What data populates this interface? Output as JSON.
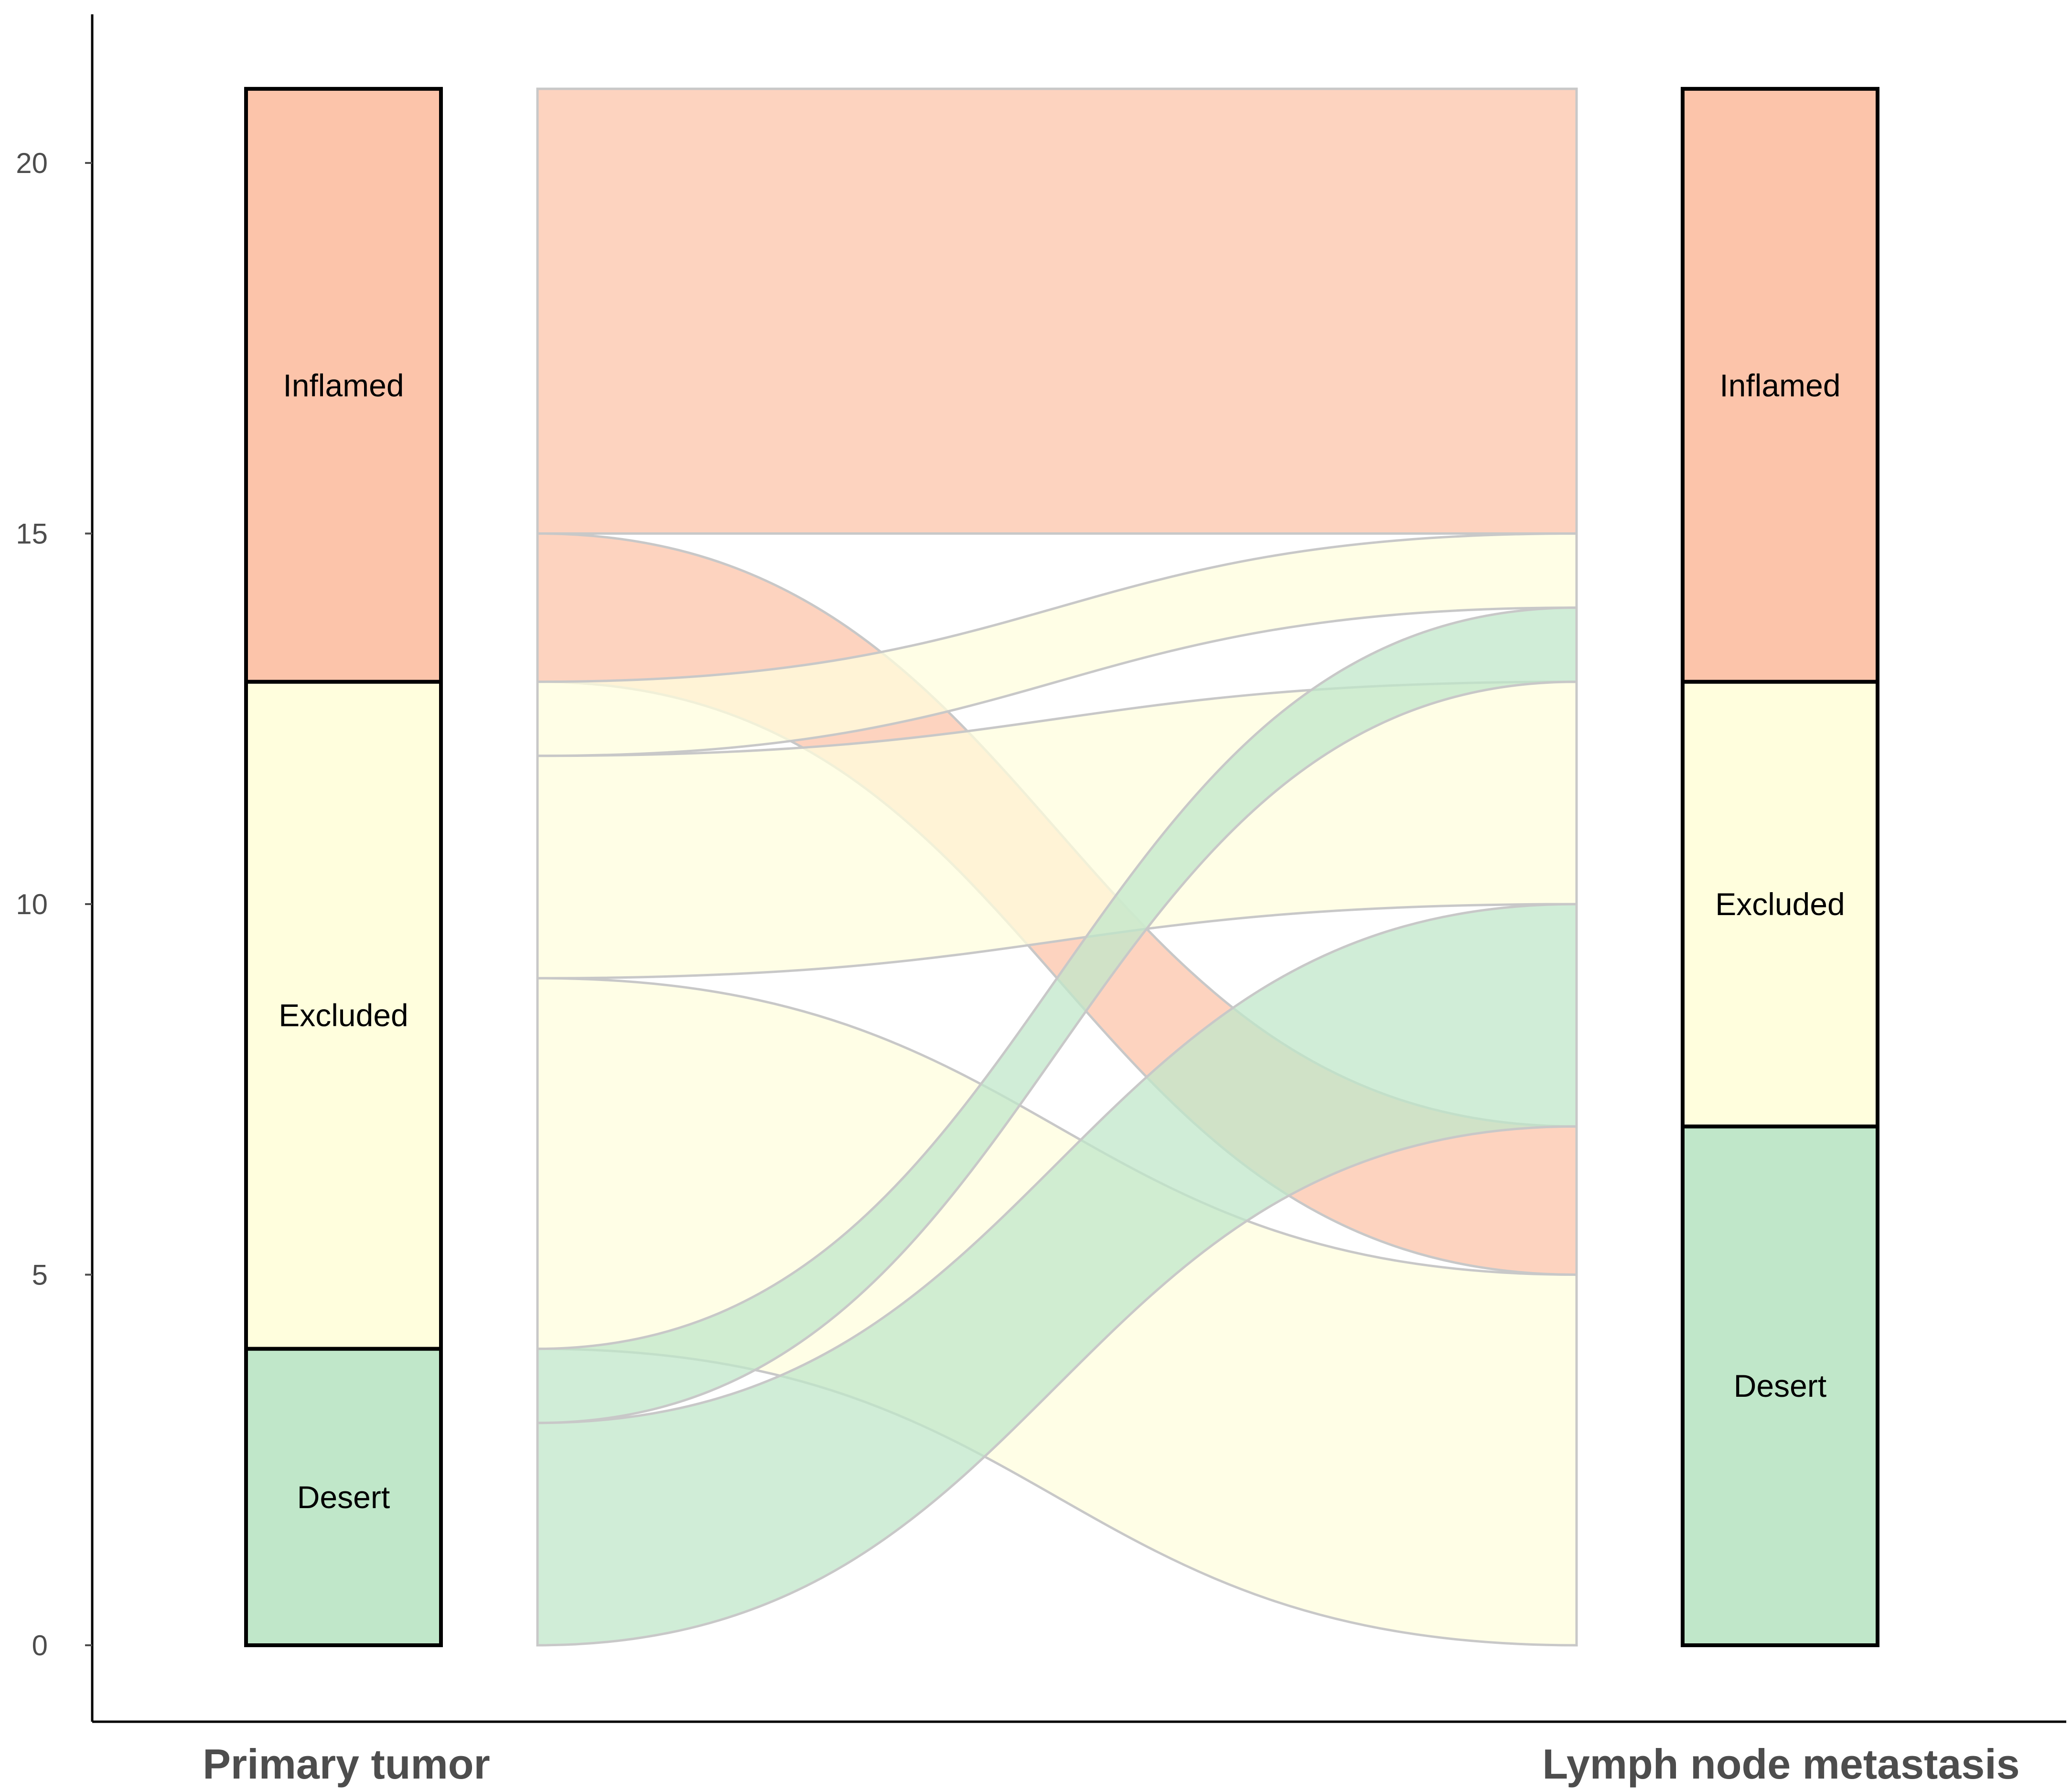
{
  "chart_data": {
    "type": "alluvial",
    "axes": [
      "Primary tumor",
      "Lymph node metastasis"
    ],
    "categories": [
      "Inflamed",
      "Excluded",
      "Desert"
    ],
    "colors": {
      "Inflamed": "#fcc4aa",
      "Excluded": "#fffedd",
      "Desert": "#c0e7c9"
    },
    "ylim": [
      0,
      21
    ],
    "yticks": [
      0,
      5,
      10,
      15,
      20
    ],
    "primary": {
      "Inflamed": 8,
      "Excluded": 9,
      "Desert": 4
    },
    "lymph": {
      "Inflamed": 8,
      "Excluded": 6,
      "Desert": 7
    },
    "flows": [
      {
        "from": "Inflamed",
        "to": "Inflamed",
        "value": 6
      },
      {
        "from": "Inflamed",
        "to": "Desert",
        "value": 2
      },
      {
        "from": "Excluded",
        "to": "Inflamed",
        "value": 1
      },
      {
        "from": "Excluded",
        "to": "Excluded",
        "value": 3
      },
      {
        "from": "Excluded",
        "to": "Desert",
        "value": 5
      },
      {
        "from": "Desert",
        "to": "Inflamed",
        "value": 1
      },
      {
        "from": "Desert",
        "to": "Excluded",
        "value": 3
      }
    ]
  }
}
